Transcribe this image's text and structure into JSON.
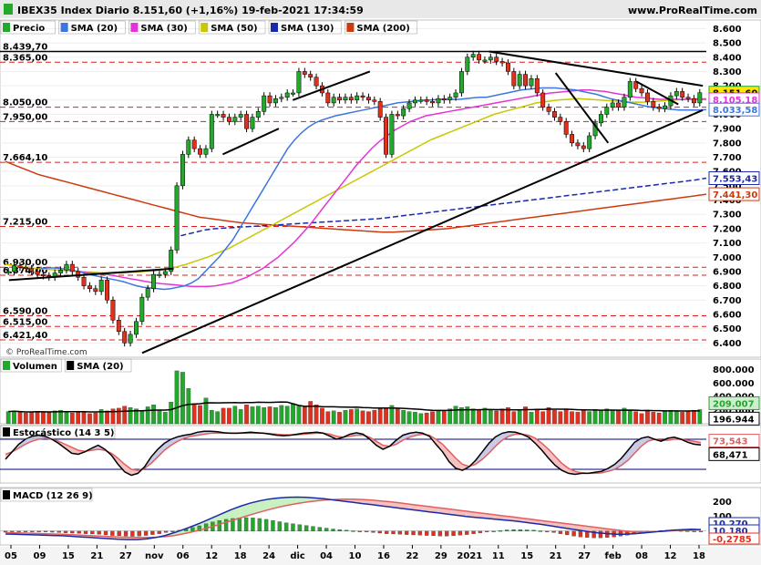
{
  "header": {
    "title": "IBEX35 Index Diario 8.151,60 (+1,16%) 19-feb-2021 17:34:59",
    "site": "www.ProRealTime.com",
    "copyright": "© ProRealTime.com"
  },
  "colors": {
    "price_up": "#22a82a",
    "price_down": "#e0301e",
    "sma20": "#3d76e0",
    "sma30": "#e433d6",
    "sma50": "#c8c800",
    "sma130": "#1a2aaa",
    "sma200": "#cc3a10",
    "trendline": "#000000",
    "hline": "#d62020",
    "stoch_k": "#000000",
    "stoch_d": "#e06060",
    "macd_line": "#1a2aaa",
    "macd_signal": "#e06060",
    "level_line": "#000080"
  },
  "chart_data": [
    {
      "type": "candlestick",
      "panel": "price",
      "legend": [
        {
          "name": "Precio",
          "color": "#22a82a"
        },
        {
          "name": "SMA (20)",
          "color": "#3d76e0"
        },
        {
          "name": "SMA (30)",
          "color": "#e433d6"
        },
        {
          "name": "SMA (50)",
          "color": "#c8c800"
        },
        {
          "name": "SMA (130)",
          "color": "#1a2aaa"
        },
        {
          "name": "SMA (200)",
          "color": "#cc3a10"
        }
      ],
      "y_ticks": [
        "8.600",
        "8.500",
        "8.400",
        "8.300",
        "8.200",
        "8.100",
        "8.000",
        "7.900",
        "7.800",
        "7.700",
        "7.600",
        "7.500",
        "7.400",
        "7.300",
        "7.200",
        "7.100",
        "7.000",
        "6.900",
        "6.800",
        "6.700",
        "6.600",
        "6.500",
        "6.400"
      ],
      "ylim": [
        6300,
        8660
      ],
      "level_labels": [
        "8.439,70",
        "8.365,00",
        "8.050,00",
        "7.950,00",
        "7.664,10",
        "7.215,00",
        "6.930,00",
        "6.874,00",
        "6.590,00",
        "6.515,00",
        "6.421,40"
      ],
      "levels": [
        8439.7,
        8365.0,
        8050.0,
        7950.0,
        7664.1,
        7215.0,
        6930.0,
        6874.0,
        6590.0,
        6515.0,
        6421.4
      ],
      "value_boxes": [
        {
          "label": "8.151,60",
          "value": 8151.6,
          "color": "#22a82a"
        },
        {
          "label": "8.105,18",
          "value": 8105.18,
          "color": "#e433d6"
        },
        {
          "label": "8.033,58",
          "value": 8033.58,
          "color": "#3d76e0"
        },
        {
          "label": "7.553,43",
          "value": 7553.43,
          "color": "#1a2aaa"
        },
        {
          "label": "7.441,30",
          "value": 7441.3,
          "color": "#cc3a10"
        }
      ],
      "x_labels": [
        "05",
        "09",
        "15",
        "21",
        "27",
        "nov",
        "06",
        "12",
        "18",
        "24",
        "dic",
        "04",
        "10",
        "16",
        "22",
        "29",
        "2021",
        "11",
        "15",
        "21",
        "27",
        "feb",
        "08",
        "12",
        "18"
      ],
      "closes": [
        6900,
        6940,
        6930,
        6920,
        6900,
        6880,
        6870,
        6860,
        6890,
        6910,
        6950,
        6900,
        6860,
        6800,
        6780,
        6760,
        6840,
        6700,
        6560,
        6480,
        6400,
        6460,
        6550,
        6720,
        6780,
        6880,
        6880,
        6900,
        7050,
        7500,
        7720,
        7820,
        7760,
        7720,
        7760,
        8000,
        8000,
        7980,
        7950,
        7980,
        8000,
        7900,
        7980,
        8020,
        8130,
        8080,
        8110,
        8120,
        8150,
        8150,
        8300,
        8280,
        8260,
        8200,
        8150,
        8080,
        8120,
        8100,
        8120,
        8100,
        8130,
        8120,
        8100,
        8090,
        7980,
        7720,
        8000,
        7990,
        8040,
        8080,
        8100,
        8100,
        8090,
        8080,
        8110,
        8100,
        8120,
        8150,
        8300,
        8400,
        8420,
        8380,
        8380,
        8400,
        8370,
        8360,
        8300,
        8200,
        8280,
        8200,
        8250,
        8150,
        8050,
        8020,
        7980,
        7950,
        7860,
        7800,
        7780,
        7760,
        7850,
        7940,
        8000,
        8050,
        8080,
        8050,
        8120,
        8230,
        8180,
        8150,
        8090,
        8050,
        8040,
        8060,
        8130,
        8160,
        8120,
        8110,
        8080,
        8151.6
      ],
      "sma20": [
        6920,
        6925,
        6925,
        6920,
        6915,
        6905,
        6895,
        6880,
        6870,
        6860,
        6850,
        6840,
        6830,
        6815,
        6800,
        6790,
        6785,
        6780,
        6775,
        6780,
        6790,
        6800,
        6820,
        6850,
        6900,
        6950,
        7000,
        7060,
        7120,
        7200,
        7280,
        7360,
        7440,
        7520,
        7600,
        7680,
        7760,
        7820,
        7870,
        7910,
        7940,
        7960,
        7975,
        7990,
        8000,
        8010,
        8020,
        8030,
        8040,
        8050,
        8060,
        8070,
        8080,
        8085,
        8090,
        8095,
        8100,
        8100,
        8105,
        8105,
        8105,
        8105,
        8110,
        8115,
        8120,
        8120,
        8130,
        8140,
        8150,
        8160,
        8170,
        8175,
        8180,
        8185,
        8185,
        8185,
        8180,
        8175,
        8170,
        8160,
        8150,
        8140,
        8125,
        8110,
        8100,
        8090,
        8080,
        8070,
        8060,
        8050,
        8045,
        8040,
        8035,
        8030,
        8030,
        8030,
        8030,
        8033.58
      ],
      "sma30": [
        6900,
        6895,
        6890,
        6885,
        6880,
        6870,
        6860,
        6850,
        6840,
        6830,
        6822,
        6815,
        6810,
        6805,
        6800,
        6795,
        6795,
        6795,
        6800,
        6810,
        6820,
        6840,
        6860,
        6890,
        6920,
        6960,
        7000,
        7050,
        7100,
        7160,
        7220,
        7290,
        7360,
        7430,
        7500,
        7570,
        7640,
        7700,
        7760,
        7810,
        7850,
        7890,
        7920,
        7950,
        7970,
        7990,
        8000,
        8010,
        8020,
        8030,
        8040,
        8050,
        8060,
        8070,
        8080,
        8090,
        8100,
        8110,
        8120,
        8130,
        8140,
        8150,
        8155,
        8160,
        8165,
        8170,
        8170,
        8165,
        8160,
        8150,
        8140,
        8130,
        8120,
        8115,
        8110,
        8105,
        8105,
        8105,
        8105,
        8105,
        8105,
        8105.18
      ],
      "sma50": [
        6950,
        6940,
        6930,
        6920,
        6915,
        6910,
        6905,
        6900,
        6895,
        6890,
        6890,
        6890,
        6895,
        6900,
        6905,
        6915,
        6930,
        6950,
        6975,
        7000,
        7030,
        7060,
        7100,
        7140,
        7180,
        7220,
        7260,
        7300,
        7340,
        7380,
        7420,
        7460,
        7500,
        7540,
        7580,
        7620,
        7660,
        7700,
        7740,
        7780,
        7820,
        7850,
        7880,
        7910,
        7940,
        7970,
        8000,
        8020,
        8040,
        8060,
        8080,
        8090,
        8100,
        8105,
        8110,
        8105,
        8100,
        8095,
        8090,
        8085,
        8085,
        8090,
        8095,
        8100,
        8105,
        8110,
        8110
      ],
      "sma130": [
        7150,
        7170,
        7190,
        7200,
        7205,
        7210,
        7215,
        7220,
        7225,
        7230,
        7235,
        7240,
        7245,
        7250,
        7255,
        7260,
        7265,
        7270,
        7280,
        7290,
        7300,
        7310,
        7320,
        7330,
        7340,
        7350,
        7360,
        7370,
        7380,
        7390,
        7400,
        7410,
        7420,
        7430,
        7440,
        7450,
        7460,
        7470,
        7480,
        7490,
        7500,
        7510,
        7520,
        7530,
        7540,
        7553.43
      ],
      "sma200": [
        7670,
        7640,
        7610,
        7580,
        7560,
        7540,
        7520,
        7500,
        7480,
        7460,
        7440,
        7420,
        7400,
        7380,
        7360,
        7340,
        7320,
        7300,
        7280,
        7270,
        7260,
        7250,
        7240,
        7235,
        7230,
        7225,
        7220,
        7215,
        7210,
        7205,
        7200,
        7195,
        7190,
        7185,
        7180,
        7175,
        7175,
        7180,
        7185,
        7190,
        7195,
        7200,
        7210,
        7220,
        7230,
        7240,
        7250,
        7260,
        7270,
        7280,
        7290,
        7300,
        7310,
        7320,
        7330,
        7340,
        7350,
        7360,
        7370,
        7380,
        7390,
        7400,
        7410,
        7420,
        7430,
        7441.3
      ]
    },
    {
      "type": "bar",
      "panel": "volume",
      "legend": [
        {
          "name": "Volumen",
          "color": "#22a82a"
        },
        {
          "name": "SMA (20)",
          "color": "#000000"
        }
      ],
      "y_ticks": [
        "800.000",
        "600.000",
        "400.000",
        "200.000"
      ],
      "ylim": [
        0,
        900000
      ],
      "value_boxes": [
        {
          "label": "209.007",
          "value": 209007
        },
        {
          "label": "196.944",
          "value": 196944
        }
      ],
      "values": [
        180000,
        190000,
        170000,
        160000,
        175000,
        185000,
        170000,
        165000,
        190000,
        200000,
        175000,
        160000,
        185000,
        170000,
        150000,
        160000,
        210000,
        190000,
        220000,
        230000,
        260000,
        240000,
        220000,
        180000,
        250000,
        280000,
        200000,
        170000,
        320000,
        780000,
        760000,
        520000,
        300000,
        270000,
        380000,
        200000,
        180000,
        230000,
        230000,
        260000,
        210000,
        280000,
        250000,
        260000,
        240000,
        250000,
        240000,
        270000,
        260000,
        300000,
        270000,
        250000,
        330000,
        280000,
        230000,
        180000,
        190000,
        170000,
        200000,
        210000,
        220000,
        190000,
        180000,
        200000,
        220000,
        230000,
        270000,
        220000,
        200000,
        180000,
        170000,
        150000,
        160000,
        180000,
        200000,
        190000,
        220000,
        260000,
        240000,
        250000,
        220000,
        210000,
        230000,
        200000,
        190000,
        220000,
        240000,
        180000,
        200000,
        250000,
        170000,
        210000,
        180000,
        240000,
        200000,
        180000,
        220000,
        180000,
        170000,
        200000,
        180000,
        210000,
        190000,
        220000,
        200000,
        190000,
        230000,
        200000,
        180000,
        150000,
        190000,
        170000,
        160000,
        180000,
        200000,
        180000,
        170000,
        190000,
        200000,
        209007
      ],
      "sma": 196944
    },
    {
      "type": "line",
      "panel": "stochastic",
      "legend": [
        {
          "name": "Estocástico (14 3 5)",
          "color": "#000000"
        }
      ],
      "value_boxes": [
        {
          "label": "73,543",
          "value": 73.543
        },
        {
          "label": "68,471",
          "value": 68.471
        }
      ],
      "levels": [
        80,
        20
      ],
      "ylim": [
        0,
        100
      ],
      "k": [
        40,
        55,
        70,
        80,
        86,
        88,
        86,
        80,
        72,
        62,
        52,
        50,
        55,
        62,
        68,
        60,
        48,
        30,
        15,
        8,
        12,
        25,
        45,
        60,
        72,
        80,
        85,
        88,
        90,
        94,
        96,
        96,
        95,
        93,
        92,
        92,
        93,
        94,
        93,
        92,
        90,
        88,
        87,
        88,
        90,
        92,
        93,
        94,
        92,
        86,
        80,
        84,
        90,
        93,
        90,
        80,
        68,
        60,
        66,
        78,
        88,
        92,
        94,
        92,
        86,
        70,
        55,
        35,
        22,
        18,
        25,
        38,
        55,
        72,
        85,
        92,
        95,
        94,
        90,
        84,
        72,
        58,
        42,
        28,
        18,
        12,
        10,
        12,
        12,
        14,
        16,
        22,
        30,
        42,
        58,
        74,
        82,
        85,
        80,
        76,
        82,
        84,
        80,
        74,
        70,
        68.471
      ],
      "d": [
        50,
        55,
        62,
        70,
        76,
        80,
        82,
        80,
        76,
        70,
        64,
        58,
        56,
        58,
        60,
        58,
        52,
        42,
        30,
        20,
        18,
        22,
        32,
        45,
        58,
        68,
        76,
        82,
        86,
        88,
        90,
        92,
        92,
        92,
        92,
        92,
        92,
        92,
        92,
        92,
        91,
        90,
        89,
        89,
        89,
        90,
        91,
        92,
        92,
        90,
        86,
        84,
        86,
        88,
        88,
        84,
        76,
        68,
        66,
        70,
        78,
        84,
        88,
        90,
        88,
        80,
        70,
        56,
        42,
        30,
        26,
        30,
        40,
        52,
        66,
        78,
        86,
        90,
        90,
        88,
        82,
        72,
        60,
        46,
        32,
        22,
        16,
        13,
        12,
        12,
        13,
        16,
        20,
        28,
        38,
        52,
        66,
        76,
        80,
        78,
        78,
        80,
        80,
        78,
        76,
        73.543
      ]
    },
    {
      "type": "bar",
      "panel": "macd",
      "legend": [
        {
          "name": "MACD (12 26 9)",
          "color": "#000000"
        }
      ],
      "y_ticks": [
        "200",
        "100"
      ],
      "value_boxes": [
        {
          "label": "10,270",
          "value": 10.27
        },
        {
          "label": "10,180",
          "value": 10.18
        },
        {
          "label": "-0,2785",
          "value": -0.2785
        }
      ],
      "ylim": [
        -70,
        260
      ],
      "histogram": [
        -8,
        -6,
        -5,
        -4,
        -4,
        -5,
        -6,
        -8,
        -10,
        -12,
        -14,
        -16,
        -18,
        -20,
        -22,
        -26,
        -30,
        -32,
        -34,
        -36,
        -34,
        -30,
        -24,
        -18,
        -10,
        -2,
        6,
        14,
        24,
        36,
        50,
        62,
        72,
        80,
        86,
        90,
        92,
        90,
        86,
        80,
        72,
        64,
        56,
        50,
        44,
        38,
        32,
        26,
        20,
        14,
        10,
        6,
        2,
        -2,
        -6,
        -10,
        -14,
        -18,
        -20,
        -22,
        -24,
        -26,
        -28,
        -30,
        -32,
        -34,
        -34,
        -32,
        -28,
        -24,
        -18,
        -12,
        -6,
        0,
        4,
        8,
        10,
        10,
        8,
        6,
        2,
        -4,
        -10,
        -18,
        -26,
        -34,
        -40,
        -44,
        -46,
        -46,
        -44,
        -40,
        -34,
        -28,
        -20,
        -12,
        -6,
        0,
        4,
        6,
        6,
        4,
        2,
        0,
        -0.2785
      ],
      "macd": [
        -20,
        -22,
        -24,
        -26,
        -28,
        -30,
        -32,
        -36,
        -40,
        -44,
        -48,
        -52,
        -56,
        -58,
        -58,
        -54,
        -44,
        -30,
        -10,
        12,
        36,
        62,
        90,
        118,
        146,
        170,
        190,
        206,
        218,
        226,
        230,
        232,
        230,
        226,
        220,
        212,
        204,
        196,
        188,
        180,
        172,
        164,
        156,
        148,
        140,
        132,
        124,
        116,
        108,
        100,
        94,
        88,
        82,
        76,
        70,
        62,
        54,
        46,
        36,
        26,
        16,
        6,
        -4,
        -12,
        -18,
        -22,
        -22,
        -18,
        -12,
        -6,
        0,
        6,
        10,
        12,
        10.27
      ],
      "signal": [
        -10,
        -12,
        -14,
        -16,
        -18,
        -20,
        -22,
        -25,
        -28,
        -31,
        -34,
        -37,
        -40,
        -42,
        -44,
        -44,
        -42,
        -38,
        -30,
        -18,
        -4,
        12,
        30,
        50,
        70,
        90,
        110,
        128,
        146,
        162,
        176,
        188,
        198,
        206,
        212,
        216,
        218,
        218,
        216,
        212,
        206,
        200,
        192,
        184,
        176,
        168,
        160,
        152,
        144,
        136,
        128,
        120,
        112,
        104,
        96,
        88,
        80,
        72,
        64,
        56,
        48,
        40,
        32,
        24,
        16,
        8,
        0,
        -4,
        -6,
        -4,
        -2,
        2,
        6,
        8,
        10.18
      ]
    }
  ]
}
